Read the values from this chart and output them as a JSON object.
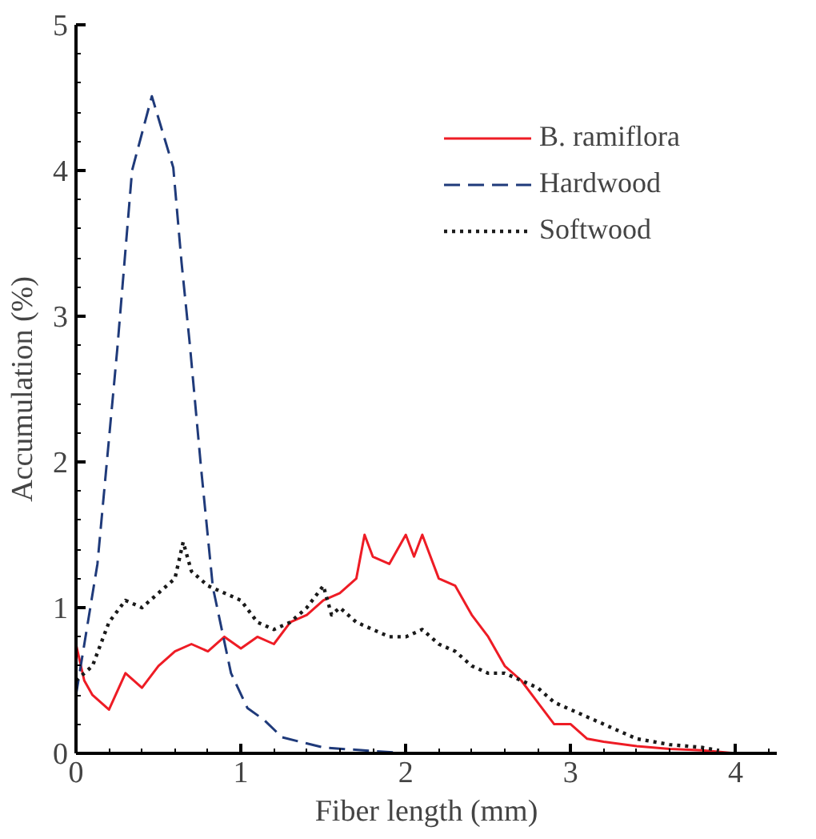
{
  "chart_data": {
    "type": "line",
    "xlabel": "Fiber length (mm)",
    "ylabel": "Accumulation (%)",
    "xlim": [
      0,
      4.25
    ],
    "ylim": [
      0,
      5
    ],
    "xticks": [
      0,
      1,
      2,
      3,
      4
    ],
    "yticks": [
      0,
      1,
      2,
      3,
      4,
      5
    ],
    "grid": false,
    "legend": "top right",
    "marker": "none",
    "series": [
      {
        "name": "B. ramiflora",
        "color": "#ee1c25",
        "line_style": "solid",
        "x": [
          0,
          0.05,
          0.1,
          0.2,
          0.3,
          0.4,
          0.5,
          0.6,
          0.7,
          0.8,
          0.9,
          1.0,
          1.1,
          1.2,
          1.3,
          1.4,
          1.5,
          1.6,
          1.7,
          1.75,
          1.8,
          1.9,
          2.0,
          2.05,
          2.1,
          2.2,
          2.3,
          2.4,
          2.5,
          2.6,
          2.7,
          2.8,
          2.9,
          3.0,
          3.1,
          3.2,
          3.4,
          3.6,
          3.8,
          4.0
        ],
        "values": [
          0.75,
          0.5,
          0.4,
          0.3,
          0.55,
          0.45,
          0.6,
          0.7,
          0.75,
          0.7,
          0.8,
          0.72,
          0.8,
          0.75,
          0.9,
          0.95,
          1.05,
          1.1,
          1.2,
          1.5,
          1.35,
          1.3,
          1.5,
          1.35,
          1.5,
          1.2,
          1.15,
          0.95,
          0.8,
          0.6,
          0.5,
          0.35,
          0.2,
          0.2,
          0.1,
          0.08,
          0.05,
          0.03,
          0.02,
          0.0
        ]
      },
      {
        "name": "Hardwood",
        "color": "#1f3a7a",
        "line_style": "dashed",
        "x": [
          0,
          0.13,
          0.25,
          0.34,
          0.46,
          0.59,
          0.64,
          0.69,
          0.76,
          0.83,
          0.94,
          1.04,
          1.14,
          1.25,
          1.5,
          2.0
        ],
        "values": [
          0.4,
          1.3,
          2.77,
          4.0,
          4.51,
          4.02,
          3.37,
          2.81,
          1.94,
          1.14,
          0.55,
          0.31,
          0.23,
          0.11,
          0.04,
          0.0
        ]
      },
      {
        "name": "Softwood",
        "color": "#1a1a1a",
        "line_style": "dotted",
        "x": [
          0,
          0.1,
          0.2,
          0.3,
          0.4,
          0.5,
          0.6,
          0.65,
          0.7,
          0.8,
          0.9,
          1.0,
          1.1,
          1.2,
          1.3,
          1.4,
          1.5,
          1.55,
          1.6,
          1.7,
          1.8,
          1.9,
          2.0,
          2.1,
          2.2,
          2.3,
          2.4,
          2.5,
          2.6,
          2.7,
          2.8,
          2.9,
          3.0,
          3.1,
          3.2,
          3.3,
          3.4,
          3.5,
          3.6,
          3.8,
          3.9
        ],
        "values": [
          0.5,
          0.6,
          0.9,
          1.05,
          1.0,
          1.1,
          1.2,
          1.45,
          1.25,
          1.15,
          1.1,
          1.05,
          0.9,
          0.85,
          0.9,
          1.0,
          1.15,
          0.95,
          1.0,
          0.9,
          0.85,
          0.8,
          0.8,
          0.85,
          0.75,
          0.7,
          0.6,
          0.55,
          0.55,
          0.5,
          0.45,
          0.35,
          0.3,
          0.25,
          0.2,
          0.15,
          0.1,
          0.08,
          0.06,
          0.04,
          0.02
        ]
      }
    ]
  }
}
